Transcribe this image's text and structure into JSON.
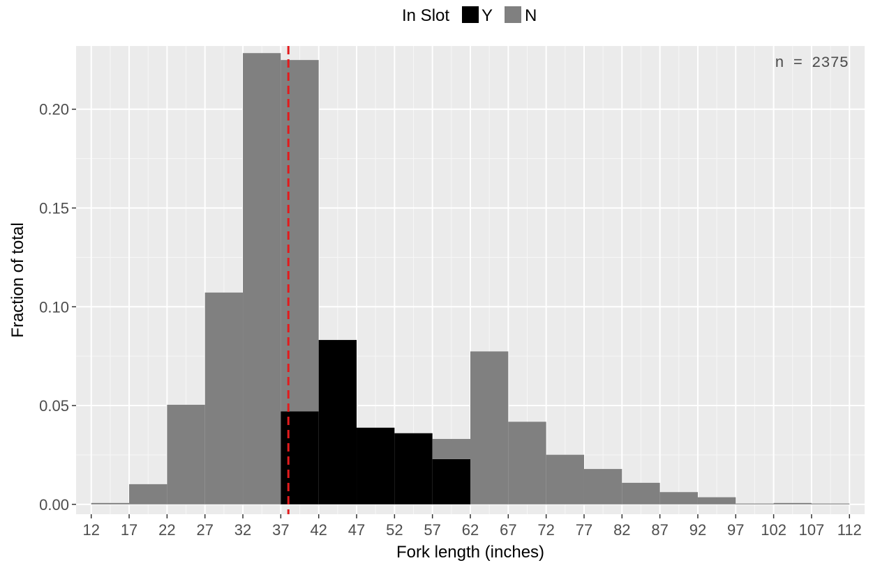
{
  "chart_data": {
    "type": "bar",
    "subtype": "stacked-histogram",
    "xlabel": "Fork length (inches)",
    "ylabel": "Fraction of total",
    "xlim": [
      10,
      114
    ],
    "ylim": [
      -0.005,
      0.232
    ],
    "x_ticks": [
      12,
      17,
      22,
      27,
      32,
      37,
      42,
      47,
      52,
      57,
      62,
      67,
      72,
      77,
      82,
      87,
      92,
      97,
      102,
      107,
      112
    ],
    "y_ticks": [
      0.0,
      0.05,
      0.1,
      0.15,
      0.2
    ],
    "y_tick_labels": [
      "0.00",
      "0.05",
      "0.10",
      "0.15",
      "0.20"
    ],
    "grid": true,
    "legend": {
      "title": "In Slot",
      "placement": "top",
      "entries": [
        {
          "label": "Y",
          "color": "#000000"
        },
        {
          "label": "N",
          "color": "#808080"
        }
      ]
    },
    "annotation": "n = 2375",
    "reference_line": {
      "x": 38,
      "color": "#e31a1c",
      "style": "dashed"
    },
    "bins": [
      {
        "x0": 12,
        "x1": 17,
        "Y": 0.0,
        "N": 0.0007
      },
      {
        "x0": 17,
        "x1": 22,
        "Y": 0.0,
        "N": 0.0102
      },
      {
        "x0": 22,
        "x1": 27,
        "Y": 0.0,
        "N": 0.0504
      },
      {
        "x0": 27,
        "x1": 32,
        "Y": 0.0,
        "N": 0.1072
      },
      {
        "x0": 32,
        "x1": 37,
        "Y": 0.0,
        "N": 0.2284
      },
      {
        "x0": 37,
        "x1": 42,
        "Y": 0.0471,
        "N": 0.1778
      },
      {
        "x0": 42,
        "x1": 47,
        "Y": 0.0832,
        "N": 0.0
      },
      {
        "x0": 47,
        "x1": 52,
        "Y": 0.0388,
        "N": 0.0
      },
      {
        "x0": 52,
        "x1": 57,
        "Y": 0.036,
        "N": 0.0
      },
      {
        "x0": 57,
        "x1": 62,
        "Y": 0.0229,
        "N": 0.0102
      },
      {
        "x0": 62,
        "x1": 67,
        "Y": 0.0,
        "N": 0.0774
      },
      {
        "x0": 67,
        "x1": 72,
        "Y": 0.0,
        "N": 0.0418
      },
      {
        "x0": 72,
        "x1": 77,
        "Y": 0.0,
        "N": 0.0251
      },
      {
        "x0": 77,
        "x1": 82,
        "Y": 0.0,
        "N": 0.0179
      },
      {
        "x0": 82,
        "x1": 87,
        "Y": 0.0,
        "N": 0.0109
      },
      {
        "x0": 87,
        "x1": 92,
        "Y": 0.0,
        "N": 0.0062
      },
      {
        "x0": 92,
        "x1": 97,
        "Y": 0.0,
        "N": 0.0036
      },
      {
        "x0": 97,
        "x1": 102,
        "Y": 0.0,
        "N": 0.0004
      },
      {
        "x0": 102,
        "x1": 107,
        "Y": 0.0,
        "N": 0.0007
      },
      {
        "x0": 107,
        "x1": 112,
        "Y": 0.0,
        "N": 0.0004
      }
    ]
  }
}
